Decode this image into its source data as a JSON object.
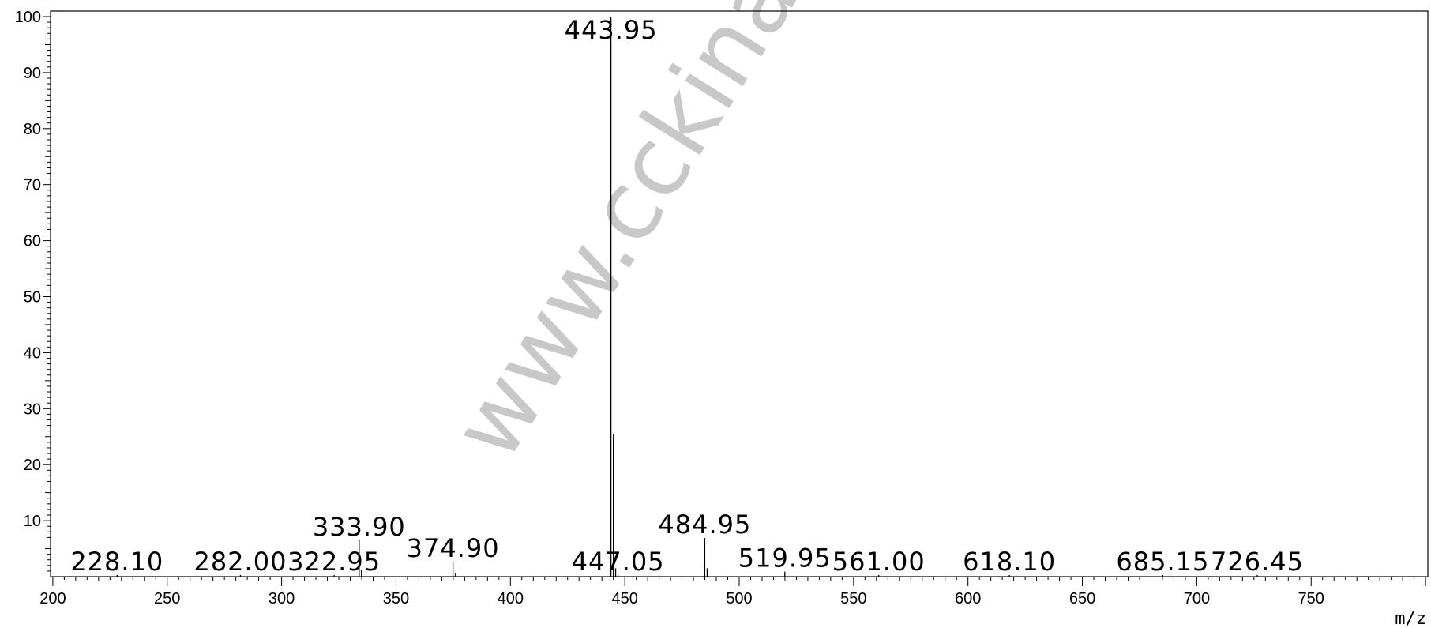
{
  "watermark": "www.cckinase.c",
  "chart_data": {
    "type": "bar",
    "title": "",
    "xlabel": "m/z",
    "ylabel": "",
    "xlim": [
      199,
      801
    ],
    "ylim": [
      0,
      100
    ],
    "xticks": [
      200,
      250,
      300,
      350,
      400,
      450,
      500,
      550,
      600,
      650,
      700,
      750
    ],
    "yticks": [
      10,
      20,
      30,
      40,
      50,
      60,
      70,
      80,
      90,
      100
    ],
    "grid": false,
    "peaks": [
      {
        "x": 228.1,
        "y": 0.3,
        "label": "228.10"
      },
      {
        "x": 282.0,
        "y": 0.3,
        "label": "282.00"
      },
      {
        "x": 322.95,
        "y": 0.3,
        "label": "322.95"
      },
      {
        "x": 333.9,
        "y": 6.5,
        "label": "333.90"
      },
      {
        "x": 334.9,
        "y": 1.2
      },
      {
        "x": 374.9,
        "y": 2.7,
        "label": "374.90"
      },
      {
        "x": 376.0,
        "y": 0.6
      },
      {
        "x": 443.95,
        "y": 100,
        "label": "443.95"
      },
      {
        "x": 445.0,
        "y": 25.5
      },
      {
        "x": 446.0,
        "y": 1.5
      },
      {
        "x": 447.05,
        "y": 0.3,
        "label": "447.05"
      },
      {
        "x": 484.95,
        "y": 6.9,
        "label": "484.95"
      },
      {
        "x": 486.0,
        "y": 1.5
      },
      {
        "x": 519.95,
        "y": 0.9,
        "label": "519.95"
      },
      {
        "x": 561.0,
        "y": 0.3,
        "label": "561.00"
      },
      {
        "x": 618.1,
        "y": 0.3,
        "label": "618.10"
      },
      {
        "x": 685.15,
        "y": 0.3,
        "label": "685.15"
      },
      {
        "x": 726.45,
        "y": 0.3,
        "label": "726.45"
      }
    ]
  }
}
